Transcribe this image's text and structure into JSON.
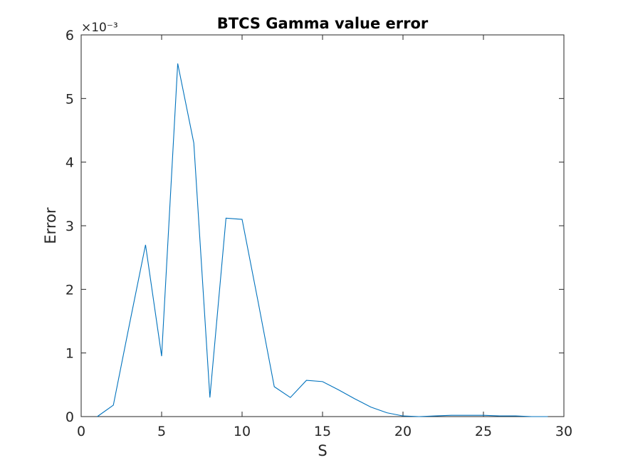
{
  "chart_data": {
    "type": "line",
    "title": "BTCS Gamma value error",
    "xlabel": "S",
    "ylabel": "Error",
    "xlim": [
      0,
      30
    ],
    "ylim": [
      0,
      0.006
    ],
    "xticks": [
      0,
      5,
      10,
      15,
      20,
      25,
      30
    ],
    "xtick_labels": [
      "0",
      "5",
      "10",
      "15",
      "20",
      "25",
      "30"
    ],
    "yticks": [
      0,
      0.001,
      0.002,
      0.003,
      0.004,
      0.005,
      0.006
    ],
    "ytick_labels": [
      "0",
      "1",
      "2",
      "3",
      "4",
      "5",
      "6"
    ],
    "y_exponent_label": "×10⁻³",
    "grid": false,
    "series": [
      {
        "color": "#0072bd",
        "x": [
          1,
          2,
          3,
          4,
          5,
          6,
          7,
          8,
          9,
          10,
          11,
          12,
          13,
          14,
          15,
          16,
          17,
          18,
          19,
          20,
          21,
          22,
          23,
          24,
          25,
          26,
          27,
          28,
          29
        ],
        "y": [
          0.0,
          0.00018,
          0.00145,
          0.0027,
          0.00095,
          0.00555,
          0.0043,
          0.0003,
          0.00312,
          0.0031,
          0.0018,
          0.00047,
          0.0003,
          0.00057,
          0.00055,
          0.00042,
          0.00028,
          0.00015,
          6e-05,
          1e-05,
          0.0,
          1e-05,
          2e-05,
          2e-05,
          2e-05,
          1e-05,
          1e-05,
          0.0,
          0.0
        ]
      }
    ]
  }
}
